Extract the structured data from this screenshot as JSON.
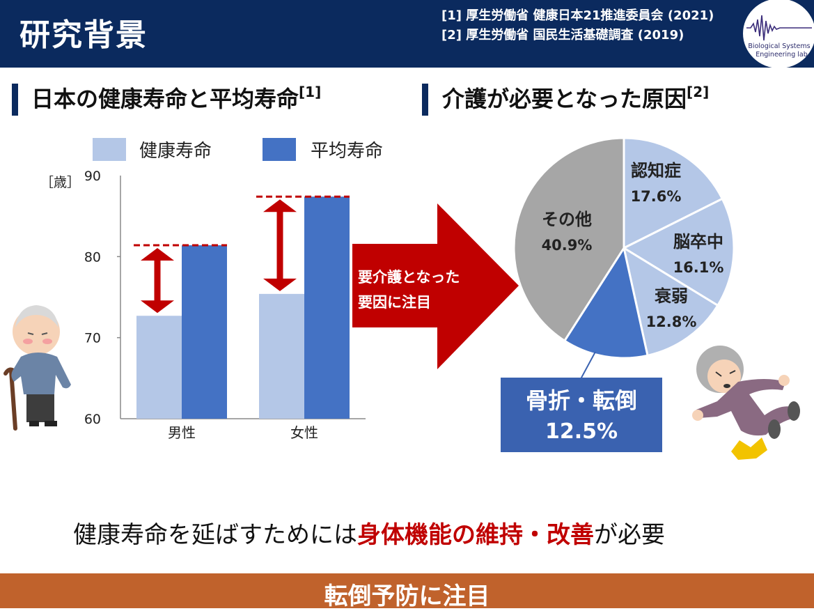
{
  "header": {
    "title": "研究背景",
    "ref1": "[1] 厚生労働省 健康日本21推進委員会 (2021)",
    "ref2": "[2] 厚生労働省 国民生活基礎調査 (2019)",
    "logo_line1": "Biological Systems",
    "logo_line2": "Engineering lab."
  },
  "left_section": {
    "title": "日本の健康寿命と平均寿命",
    "ref": "[1]"
  },
  "right_section": {
    "title": "介護が必要となった原因",
    "ref": "[2]"
  },
  "arrow": {
    "line1": "要介護となった",
    "line2": "要因に注目"
  },
  "callout": {
    "label": "骨折・転倒",
    "value": "12.5%"
  },
  "note": {
    "prefix": "健康寿命を延ばすためには",
    "emphasis": "身体機能の維持・改善",
    "suffix": "が必要"
  },
  "footer": {
    "text": "転倒予防に注目"
  },
  "colors": {
    "header": "#0b2a5e",
    "healthy": "#b4c7e7",
    "average": "#4472c4",
    "accent_red": "#c00000",
    "footer": "#c0622c",
    "gray": "#a6a6a6"
  },
  "chart_data": [
    {
      "type": "bar",
      "ylabel": "［歳］",
      "ylim": [
        60,
        90
      ],
      "yticks": [
        60,
        70,
        80,
        90
      ],
      "categories": [
        "男性",
        "女性"
      ],
      "series": [
        {
          "name": "健康寿命",
          "values": [
            72.7,
            75.4
          ]
        },
        {
          "name": "平均寿命",
          "values": [
            81.4,
            87.4
          ]
        }
      ],
      "legend": "top"
    },
    {
      "type": "pie",
      "slices": [
        {
          "label": "認知症",
          "value": 17.6,
          "text": "17.6%"
        },
        {
          "label": "脳卒中",
          "value": 16.1,
          "text": "16.1%"
        },
        {
          "label": "衰弱",
          "value": 12.8,
          "text": "12.8%"
        },
        {
          "label": "骨折・転倒",
          "value": 12.5,
          "text": "12.5%"
        },
        {
          "label": "その他",
          "value": 40.9,
          "text": "40.9%"
        }
      ]
    }
  ]
}
